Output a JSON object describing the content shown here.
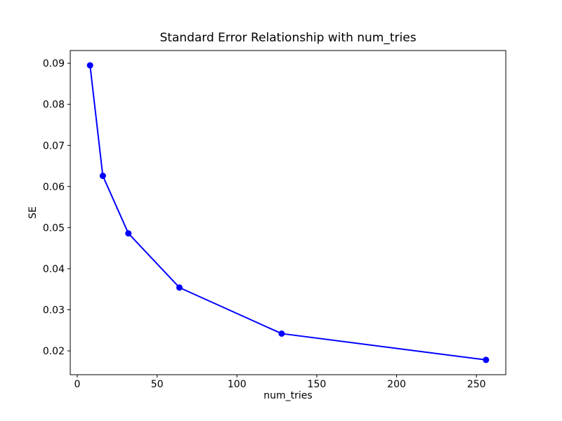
{
  "figure": {
    "background_color": "#ffffff"
  },
  "chart_data": {
    "type": "line",
    "title": "Standard Error Relationship with num_tries",
    "xlabel": "num_tries",
    "ylabel": "SE",
    "x": [
      8,
      16,
      32,
      64,
      128,
      256
    ],
    "y": [
      0.0895,
      0.0626,
      0.0486,
      0.0354,
      0.0242,
      0.0178
    ],
    "xlim": [
      -4.4,
      268.4
    ],
    "ylim": [
      0.0142,
      0.0931
    ],
    "xticks": [
      0,
      50,
      100,
      150,
      200,
      250
    ],
    "xtick_labels": [
      "0",
      "50",
      "100",
      "150",
      "200",
      "250"
    ],
    "yticks": [
      0.02,
      0.03,
      0.04,
      0.05,
      0.06,
      0.07,
      0.08,
      0.09
    ],
    "ytick_labels": [
      "0.02",
      "0.03",
      "0.04",
      "0.05",
      "0.06",
      "0.07",
      "0.08",
      "0.09"
    ],
    "grid": false,
    "legend": null,
    "line_color": "#0000ff",
    "marker": "circle",
    "marker_radius": 4.5,
    "line_width": 2,
    "axis_color": "#000000",
    "text_color": "#000000"
  }
}
